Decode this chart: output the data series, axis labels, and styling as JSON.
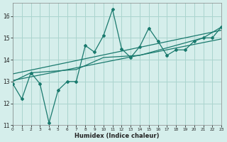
{
  "x": [
    0,
    1,
    2,
    3,
    4,
    5,
    6,
    7,
    8,
    9,
    10,
    11,
    12,
    13,
    14,
    15,
    16,
    17,
    18,
    19,
    20,
    21,
    22,
    23
  ],
  "line1": [
    12.9,
    12.2,
    13.4,
    12.9,
    11.1,
    12.6,
    13.0,
    13.0,
    14.65,
    14.35,
    15.1,
    16.3,
    14.5,
    14.1,
    14.6,
    15.45,
    14.85,
    14.2,
    14.45,
    14.45,
    14.85,
    15.0,
    15.0,
    15.5
  ],
  "line2_x": [
    0,
    2,
    7,
    10,
    14,
    21,
    23
  ],
  "line2_y": [
    13.0,
    13.4,
    13.55,
    14.1,
    14.2,
    15.0,
    15.5
  ],
  "line3_x": [
    0,
    23
  ],
  "line3_y": [
    13.05,
    14.95
  ],
  "line4_x": [
    0,
    23
  ],
  "line4_y": [
    13.35,
    15.35
  ],
  "bg_color": "#d5eeeb",
  "grid_color": "#aad4ce",
  "line_color": "#1a7a6e",
  "xlabel": "Humidex (Indice chaleur)",
  "xlim": [
    0,
    23
  ],
  "ylim": [
    11.0,
    16.6
  ],
  "yticks": [
    11,
    12,
    13,
    14,
    15,
    16
  ],
  "xticks": [
    0,
    1,
    2,
    3,
    4,
    5,
    6,
    7,
    8,
    9,
    10,
    11,
    12,
    13,
    14,
    15,
    16,
    17,
    18,
    19,
    20,
    21,
    22,
    23
  ]
}
